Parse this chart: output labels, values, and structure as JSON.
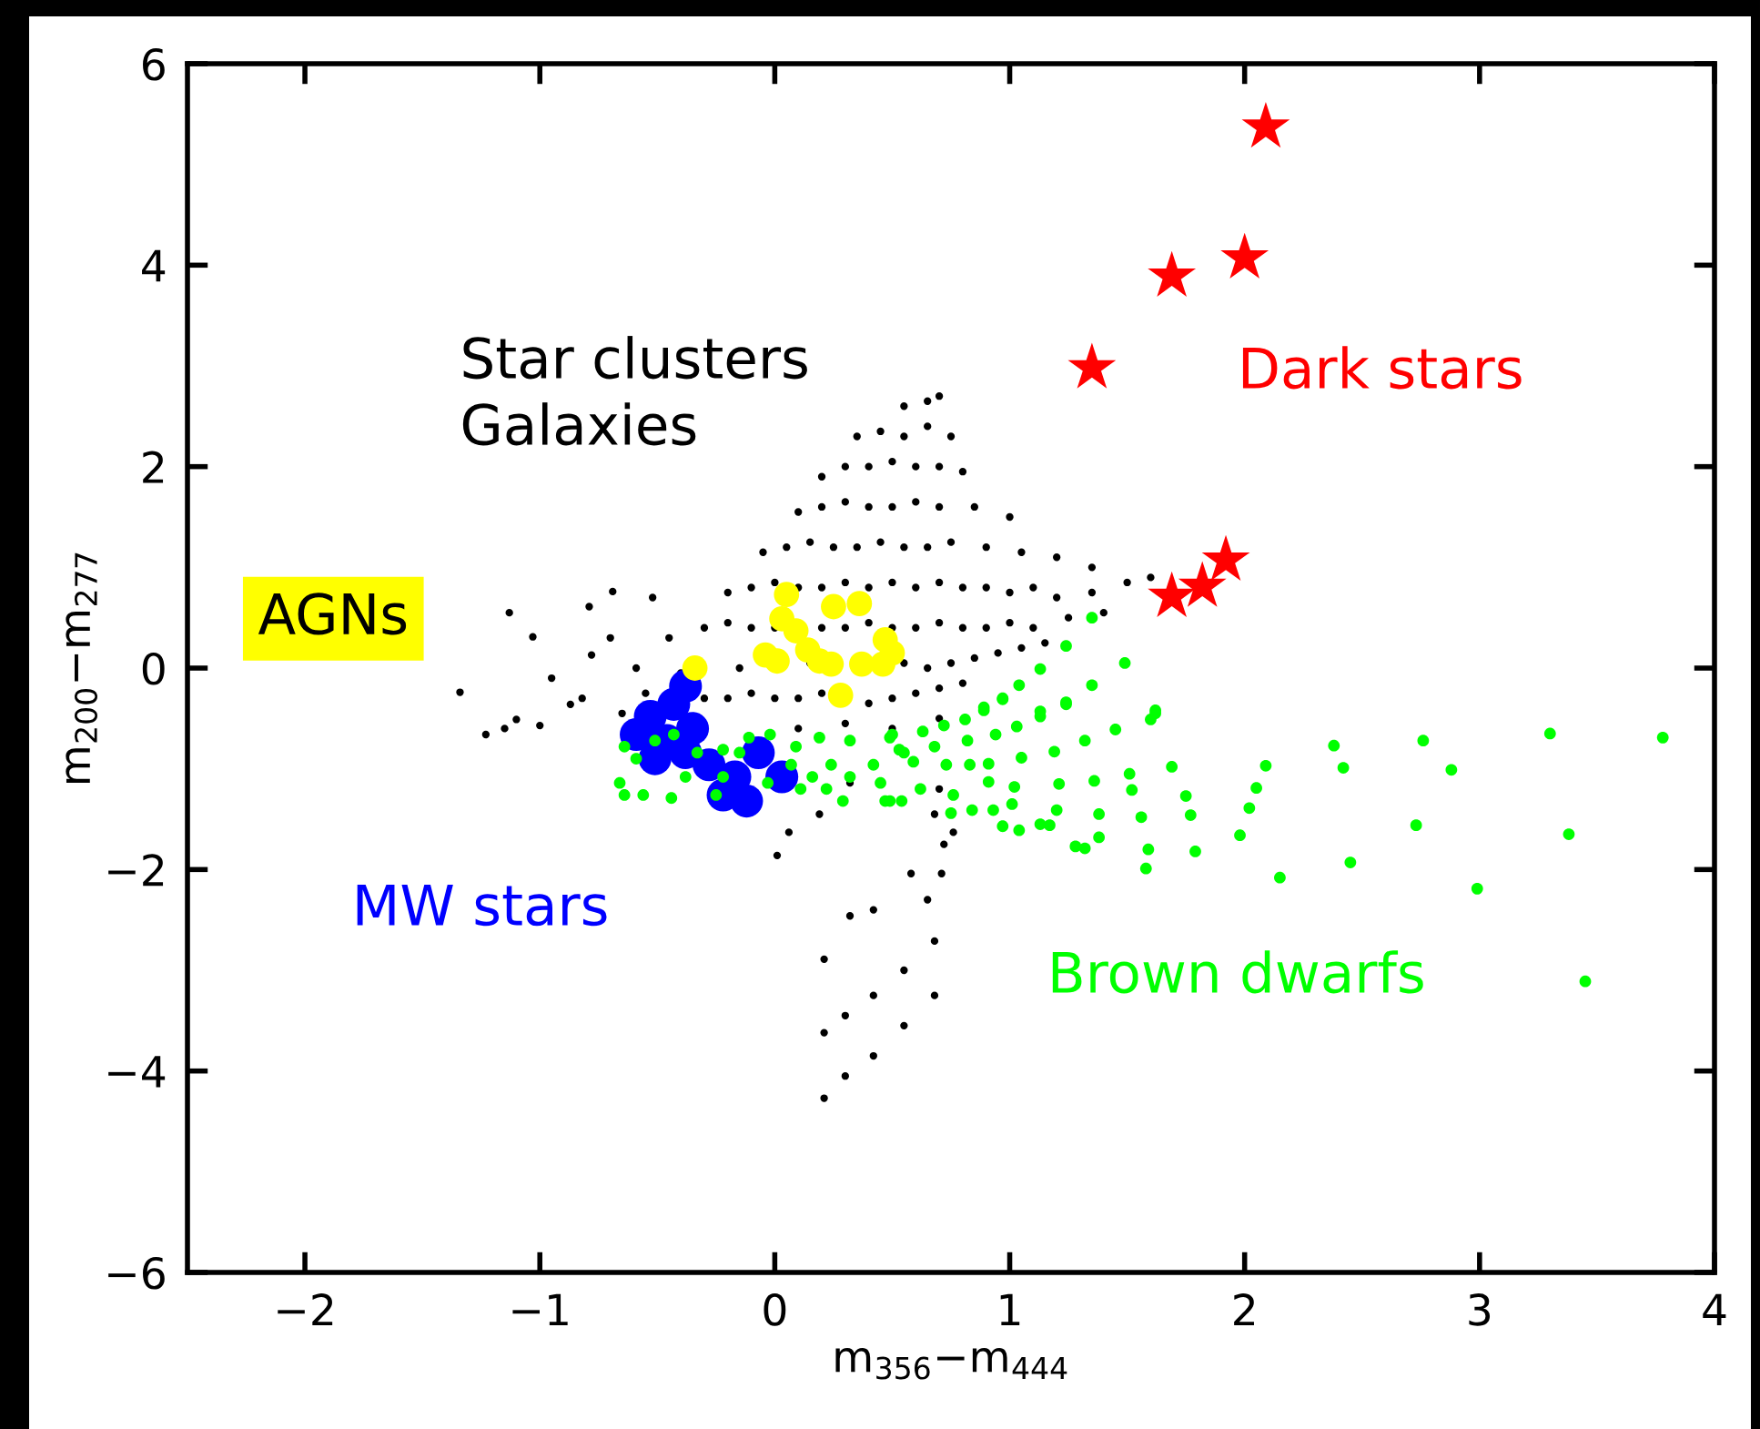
{
  "chart_data": {
    "type": "scatter",
    "xlabel": "m$_{356}$−m$_{444}$",
    "ylabel": "m$_{200}$−m$_{277}$",
    "xlim": [
      -2.5,
      4
    ],
    "ylim": [
      -6,
      6
    ],
    "xticks": [
      -2,
      -1,
      0,
      1,
      2,
      3,
      4
    ],
    "yticks": [
      -6,
      -4,
      -2,
      0,
      2,
      4,
      6
    ],
    "grid": false,
    "legend": false,
    "series": [
      {
        "name": "Star clusters\nGalaxies",
        "color": "#000000",
        "marker": "circle",
        "x": [
          -1.34,
          -1.13,
          -1.03,
          -0.79,
          -0.69,
          -0.52,
          -0.78,
          -0.59,
          -1.23,
          -1.1,
          -1.0,
          -0.87,
          -0.82,
          -0.95,
          -0.65,
          -0.55,
          -0.45,
          -0.4,
          -1.15,
          -0.7,
          0.55,
          0.65,
          0.7,
          0.35,
          0.45,
          0.55,
          0.65,
          0.75,
          0.2,
          0.3,
          0.4,
          0.5,
          0.6,
          0.7,
          0.8,
          0.1,
          0.2,
          0.3,
          0.4,
          0.5,
          0.6,
          0.7,
          0.85,
          1.0,
          -0.05,
          0.05,
          0.15,
          0.25,
          0.35,
          0.45,
          0.55,
          0.65,
          0.75,
          0.9,
          1.05,
          1.2,
          1.35,
          -0.2,
          -0.1,
          0.0,
          0.1,
          0.2,
          0.3,
          0.4,
          0.5,
          0.6,
          0.7,
          0.8,
          0.9,
          1.0,
          1.1,
          1.2,
          1.35,
          1.5,
          1.6,
          -0.3,
          -0.2,
          -0.1,
          0.0,
          0.2,
          0.3,
          0.4,
          0.5,
          0.6,
          0.7,
          0.8,
          0.9,
          1.0,
          1.1,
          1.25,
          1.4,
          -0.15,
          0.15,
          0.55,
          0.65,
          0.75,
          0.85,
          0.95,
          1.05,
          1.15,
          -0.3,
          -0.2,
          -0.1,
          0.0,
          0.1,
          0.2,
          0.4,
          0.5,
          0.6,
          0.7,
          0.8,
          0.1,
          0.3,
          0.5,
          0.7,
          0.21,
          0.3,
          0.42,
          0.55,
          0.68,
          0.21,
          0.3,
          0.42,
          0.55,
          0.68,
          0.21,
          0.32,
          0.42,
          0.58,
          0.71,
          0.68,
          0.76,
          0.01,
          0.06,
          0.19,
          0.32,
          0.7,
          0.72,
          0.65
        ],
        "values": [
          -0.24,
          0.55,
          0.31,
          0.61,
          0.76,
          0.7,
          0.13,
          0.0,
          -0.66,
          -0.51,
          -0.57,
          -0.36,
          -0.3,
          -0.1,
          -0.45,
          -0.25,
          0.3,
          -0.05,
          -0.6,
          0.3,
          2.6,
          2.65,
          2.7,
          2.3,
          2.35,
          2.3,
          2.4,
          2.3,
          1.9,
          2.0,
          2.0,
          2.05,
          2.0,
          2.0,
          1.95,
          1.55,
          1.6,
          1.65,
          1.6,
          1.6,
          1.65,
          1.6,
          1.6,
          1.5,
          1.15,
          1.2,
          1.25,
          1.2,
          1.2,
          1.25,
          1.2,
          1.2,
          1.25,
          1.2,
          1.15,
          1.1,
          1.0,
          0.75,
          0.8,
          0.85,
          0.8,
          0.8,
          0.85,
          0.8,
          0.85,
          0.8,
          0.85,
          0.8,
          0.8,
          0.75,
          0.8,
          0.7,
          0.75,
          0.85,
          0.9,
          0.4,
          0.45,
          0.4,
          0.4,
          0.4,
          0.4,
          0.45,
          0.4,
          0.4,
          0.45,
          0.4,
          0.4,
          0.45,
          0.4,
          0.5,
          0.55,
          0.0,
          0.05,
          0.05,
          0.0,
          0.05,
          0.1,
          0.15,
          0.2,
          0.25,
          -0.3,
          -0.3,
          -0.25,
          -0.3,
          -0.3,
          -0.25,
          -0.35,
          -0.3,
          -0.25,
          -0.2,
          -0.15,
          -0.6,
          -0.55,
          -0.6,
          -0.5,
          -4.27,
          -4.05,
          -3.85,
          -3.55,
          -3.25,
          -3.62,
          -3.45,
          -3.25,
          -3.0,
          -2.71,
          -2.89,
          -2.46,
          -2.4,
          -2.04,
          -2.04,
          -1.45,
          -1.63,
          -1.86,
          -1.63,
          -1.45,
          -1.14,
          -1.2,
          -1.75,
          -2.3
        ]
      },
      {
        "name": "MW stars",
        "color": "#0000ff",
        "marker": "circle",
        "x": [
          -0.38,
          -0.43,
          -0.53,
          -0.59,
          -0.51,
          -0.38,
          -0.28,
          -0.17,
          -0.12,
          -0.35,
          -0.46,
          -0.22,
          0.03,
          -0.07
        ],
        "values": [
          -0.18,
          -0.36,
          -0.48,
          -0.66,
          -0.9,
          -0.84,
          -0.96,
          -1.08,
          -1.32,
          -0.6,
          -0.72,
          -1.26,
          -1.08,
          -0.84
        ]
      },
      {
        "name": "Brown dwarfs",
        "color": "#00ff00",
        "marker": "circle",
        "x": [
          3.78,
          3.3,
          3.45,
          3.38,
          2.99,
          2.88,
          2.76,
          2.73,
          2.45,
          2.42,
          2.38,
          2.15,
          2.09,
          2.05,
          2.02,
          1.98,
          1.79,
          1.77,
          1.75,
          1.69,
          1.58,
          1.59,
          1.56,
          1.52,
          1.51,
          1.38,
          1.38,
          1.36,
          1.32,
          1.28,
          1.62,
          1.6,
          1.45,
          1.32,
          1.21,
          1.2,
          1.19,
          1.13,
          1.17,
          1.04,
          0.97,
          1.05,
          1.02,
          1.01,
          1.03,
          0.94,
          0.91,
          0.91,
          0.93,
          0.84,
          0.83,
          0.82,
          0.89,
          0.97,
          1.13,
          1.24,
          0.75,
          0.76,
          0.73,
          0.72,
          0.68,
          0.59,
          0.62,
          0.54,
          0.47,
          0.53,
          0.49,
          0.63,
          0.81,
          0.45,
          1.35,
          1.24,
          1.13,
          1.04,
          0.97,
          1.49,
          1.35,
          1.24,
          1.13,
          1.62,
          0.89,
          -0.64,
          -0.66,
          -0.59,
          -0.64,
          -0.56,
          -0.51,
          -0.43,
          -0.44,
          -0.33,
          -0.38,
          -0.25,
          -0.22,
          -0.15,
          -0.11,
          -0.22,
          -0.02,
          -0.03,
          0.09,
          0.07,
          0.19,
          0.16,
          0.24,
          0.22,
          0.32,
          0.32,
          0.42,
          0.5,
          0.49,
          0.55,
          0.29,
          0.11
        ],
        "values": [
          -0.69,
          -0.65,
          -3.11,
          -1.65,
          -2.19,
          -1.01,
          -0.72,
          -1.56,
          -1.93,
          -0.99,
          -0.77,
          -2.08,
          -0.97,
          -1.19,
          -1.39,
          -1.66,
          -1.82,
          -1.46,
          -1.27,
          -0.98,
          -1.99,
          -1.8,
          -1.48,
          -1.21,
          -1.05,
          -1.68,
          -1.45,
          -1.12,
          -1.79,
          -1.77,
          -0.45,
          -0.51,
          -0.61,
          -0.72,
          -1.15,
          -1.41,
          -0.83,
          -1.55,
          -1.56,
          -1.61,
          -1.57,
          -0.89,
          -1.18,
          -1.35,
          -0.58,
          -0.66,
          -0.95,
          -1.13,
          -1.41,
          -1.41,
          -0.96,
          -0.72,
          -0.42,
          -0.31,
          -0.48,
          -0.36,
          -1.44,
          -1.26,
          -0.96,
          -0.57,
          -0.78,
          -0.93,
          -1.2,
          -1.32,
          -1.32,
          -0.81,
          -0.69,
          -0.63,
          -0.51,
          -1.14,
          0.5,
          0.22,
          -0.01,
          -0.17,
          -0.3,
          0.05,
          -0.17,
          -0.34,
          -0.43,
          -0.42,
          -0.39,
          -0.78,
          -1.14,
          -0.9,
          -1.26,
          -1.26,
          -0.72,
          -0.66,
          -1.29,
          -0.84,
          -1.08,
          -1.26,
          -0.81,
          -0.84,
          -0.69,
          -1.08,
          -0.66,
          -1.14,
          -0.78,
          -0.96,
          -0.69,
          -1.08,
          -0.96,
          -1.2,
          -0.72,
          -1.08,
          -0.96,
          -0.66,
          -1.32,
          -0.84,
          -1.32,
          -1.2
        ]
      },
      {
        "name": "AGNs",
        "color": "#ffff00",
        "marker": "circle",
        "x": [
          -0.34,
          0.05,
          0.03,
          0.09,
          0.14,
          -0.04,
          0.01,
          0.19,
          0.24,
          0.25,
          0.36,
          0.28,
          0.37,
          0.47,
          0.46,
          0.5
        ],
        "values": [
          0.0,
          0.73,
          0.49,
          0.37,
          0.18,
          0.13,
          0.07,
          0.07,
          0.04,
          0.61,
          0.64,
          -0.27,
          0.04,
          0.28,
          0.04,
          0.15
        ]
      },
      {
        "name": "Dark stars",
        "color": "#ff0000",
        "marker": "star",
        "x": [
          2.09,
          1.69,
          2.0,
          1.35,
          1.92,
          1.82,
          1.69
        ],
        "values": [
          5.37,
          3.89,
          4.07,
          2.98,
          1.07,
          0.81,
          0.71
        ]
      }
    ]
  }
}
